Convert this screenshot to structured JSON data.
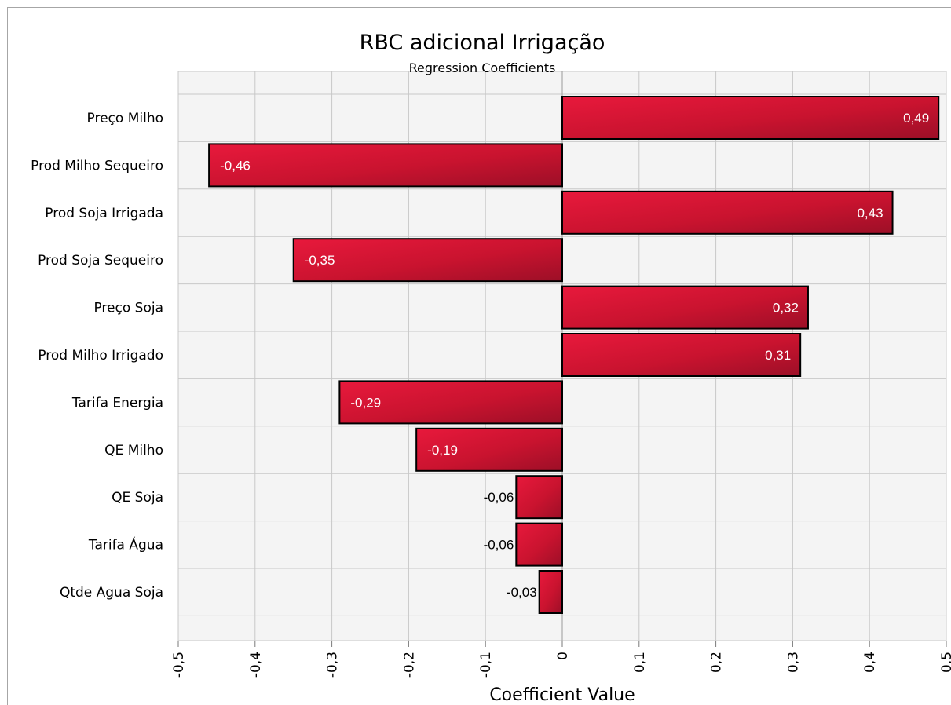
{
  "chart_data": {
    "type": "bar",
    "orientation": "horizontal",
    "title": "RBC adicional Irrigação",
    "subtitle": "Regression Coefficients",
    "xlabel": "Coefficient Value",
    "ylabel": "",
    "xlim": [
      -0.5,
      0.5
    ],
    "x_ticks": [
      "-0,5",
      "-0,4",
      "-0,3",
      "-0,2",
      "-0,1",
      "0",
      "0,1",
      "0,2",
      "0,3",
      "0,4",
      "0,5"
    ],
    "x_tick_values": [
      -0.5,
      -0.4,
      -0.3,
      -0.2,
      -0.1,
      0,
      0.1,
      0.2,
      0.3,
      0.4,
      0.5
    ],
    "grid": true,
    "categories": [
      "Preço Milho",
      "Prod Milho Sequeiro",
      "Prod Soja Irrigada",
      "Prod Soja Sequeiro",
      "Preço Soja",
      "Prod Milho Irrigado",
      "Tarifa Energia",
      "QE Milho",
      "QE Soja",
      "Tarifa Água",
      "Qtde Agua Soja"
    ],
    "values": [
      0.49,
      -0.46,
      0.43,
      -0.35,
      0.32,
      0.31,
      -0.29,
      -0.19,
      -0.06,
      -0.06,
      -0.03
    ],
    "value_labels": [
      "0,49",
      "-0,46",
      "0,43",
      "-0,35",
      "0,32",
      "0,31",
      "-0,29",
      "-0,19",
      "-0,06",
      "-0,06",
      "-0,03"
    ],
    "colors": {
      "bar_light": "#e8193c",
      "bar_dark": "#a01029",
      "bar_border": "#000000",
      "plot_bg": "#f4f4f4",
      "grid": "#c8c8c8"
    }
  }
}
